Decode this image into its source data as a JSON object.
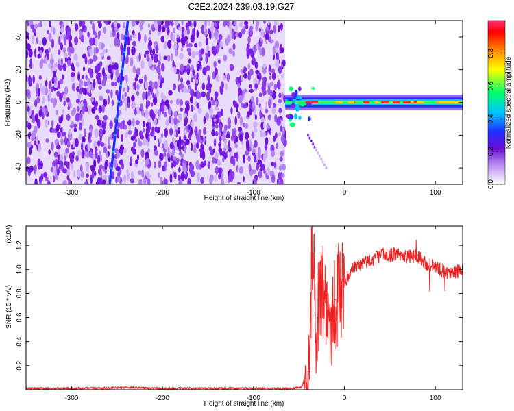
{
  "title": "C2E2.2024.239.03.19.G27",
  "chart_data": [
    {
      "type": "heatmap",
      "xlabel": "Height of straight line (km)",
      "ylabel": "Frequency (Hz)",
      "xlim": [
        -350,
        130
      ],
      "ylim": [
        -50,
        50
      ],
      "xticks": [
        -300,
        -200,
        -100,
        0,
        100
      ],
      "yticks": [
        -40,
        -20,
        0,
        20,
        40
      ],
      "colorbar": {
        "label": "Normalized spectral amplitude",
        "range": [
          0,
          1
        ],
        "ticks": [
          "0.0",
          "0.2",
          "0.4",
          "0.6",
          "0.8"
        ],
        "colors": [
          "#ffffff",
          "#7a1fe6",
          "#1e2cff",
          "#00c8ff",
          "#00ff66",
          "#ffff00",
          "#ff7a00",
          "#ff0000",
          "#ff3377"
        ]
      },
      "features": {
        "noise_region_x": [
          -350,
          -65
        ],
        "noise_amplitude_typical": 0.15,
        "diagonal_streak": {
          "x_at_ymin": -258,
          "x_at_ymax": -238,
          "amplitude": 0.3
        },
        "carrier_line": {
          "x_range": [
            -65,
            130
          ],
          "frequency_hz": 0,
          "peak_amplitude": 1.0,
          "half_width_hz": 3
        },
        "faint_tail": [
          [
            -40,
            -20
          ],
          [
            -20,
            -40
          ]
        ]
      }
    },
    {
      "type": "line",
      "xlabel": "Height of straight line (km)",
      "ylabel": "SNR (10 * v/v)",
      "y_multiplier": "(x10⁴)",
      "xlim": [
        -350,
        130
      ],
      "ylim": [
        0,
        1.36
      ],
      "xticks": [
        -300,
        -200,
        -100,
        0,
        100
      ],
      "yticks": [
        "0.2",
        "0.4",
        "0.6",
        "0.8",
        "1.0",
        "1.2"
      ],
      "series": [
        {
          "color": "#ee2222",
          "x": [
            -350,
            -300,
            -250,
            -240,
            -200,
            -150,
            -100,
            -60,
            -48,
            -44,
            -40,
            -38,
            -36,
            -34,
            -32,
            -30,
            -25,
            -20,
            -15,
            -10,
            -5,
            0,
            10,
            20,
            30,
            40,
            50,
            60,
            70,
            80,
            90,
            100,
            110,
            120,
            130
          ],
          "y": [
            0.01,
            0.01,
            0.015,
            0.02,
            0.01,
            0.01,
            0.01,
            0.01,
            0.02,
            0.06,
            0.15,
            0.35,
            1.0,
            1.36,
            0.4,
            0.6,
            0.9,
            0.7,
            0.55,
            0.75,
            0.8,
            0.9,
            1.0,
            1.05,
            1.08,
            1.12,
            1.12,
            1.13,
            1.1,
            1.12,
            1.05,
            1.02,
            0.98,
            0.97,
            1.0
          ]
        }
      ]
    }
  ]
}
